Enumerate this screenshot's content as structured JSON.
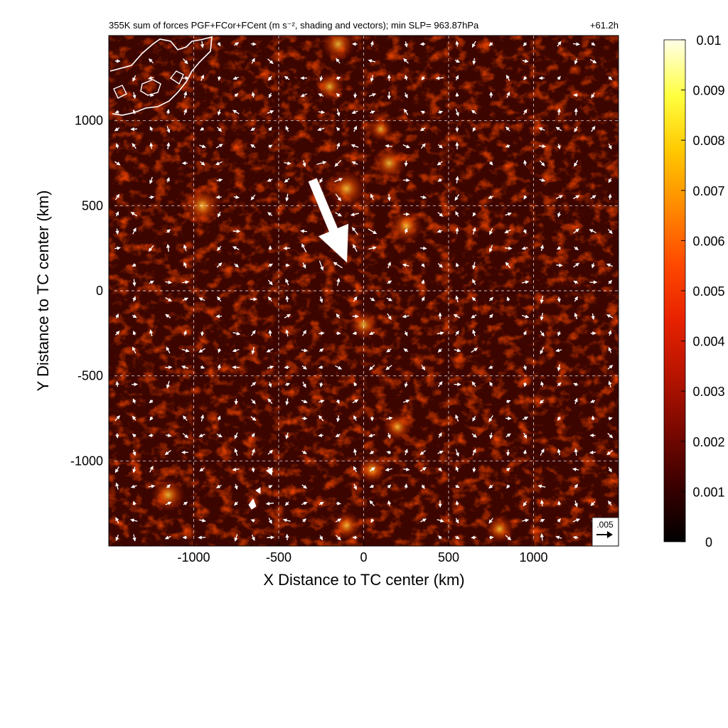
{
  "chart_data": {
    "type": "heatmap",
    "title": "355K sum of forces PGF+FCor+FCent (m s⁻², shading and vectors); min SLP= 963.87hPa",
    "time_label": "+61.2h",
    "xlabel": "X Distance to TC center (km)",
    "ylabel": "Y Distance to TC center (km)",
    "xlim": [
      -1500,
      1500
    ],
    "ylim": [
      -1500,
      1500
    ],
    "x_ticks": [
      -1000,
      -500,
      0,
      500,
      1000
    ],
    "y_ticks": [
      -1000,
      -500,
      0,
      500,
      1000
    ],
    "x_tick_labels": [
      "-1000",
      "-500",
      "0",
      "500",
      "1000"
    ],
    "y_tick_labels": [
      "-1000",
      "-500",
      "0",
      "500",
      "1000"
    ],
    "grid": true,
    "colorbar": {
      "min": 0,
      "max": 0.01,
      "ticks": [
        0.01,
        0.009,
        0.008,
        0.007,
        0.006,
        0.005,
        0.004,
        0.003,
        0.002,
        0.001,
        0
      ],
      "tick_labels": [
        "0.01",
        "0.009",
        "0.008",
        "0.007",
        "0.006",
        "0.005",
        "0.004",
        "0.003",
        "0.002",
        "0.001",
        "0"
      ],
      "colors": [
        "#000000",
        "#3a0000",
        "#7a0800",
        "#b81400",
        "#e82200",
        "#ff4a00",
        "#ff8a00",
        "#ffc800",
        "#ffff40",
        "#ffffe8"
      ]
    },
    "reference_vector": {
      "label": ".005",
      "magnitude": 0.005
    },
    "vector_grid_spacing_km": 100,
    "large_vector": {
      "x0": -300,
      "y0": 650,
      "x1": -100,
      "y1": 170,
      "label": ""
    },
    "hotspots": [
      {
        "x": -100,
        "y": 600,
        "value": 0.006
      },
      {
        "x": 150,
        "y": 750,
        "value": 0.005
      },
      {
        "x": -950,
        "y": 500,
        "value": 0.006
      },
      {
        "x": 250,
        "y": 380,
        "value": 0.005
      },
      {
        "x": 0,
        "y": -200,
        "value": 0.004
      },
      {
        "x": -150,
        "y": 1450,
        "value": 0.005
      },
      {
        "x": 50,
        "y": -1050,
        "value": 0.004
      },
      {
        "x": 200,
        "y": -800,
        "value": 0.004
      },
      {
        "x": -1150,
        "y": -1200,
        "value": 0.005
      },
      {
        "x": 800,
        "y": -1400,
        "value": 0.004
      },
      {
        "x": -100,
        "y": -1380,
        "value": 0.004
      },
      {
        "x": 100,
        "y": 950,
        "value": 0.003
      },
      {
        "x": -200,
        "y": 1200,
        "value": 0.004
      }
    ],
    "coastline_color": "#ffffff"
  }
}
